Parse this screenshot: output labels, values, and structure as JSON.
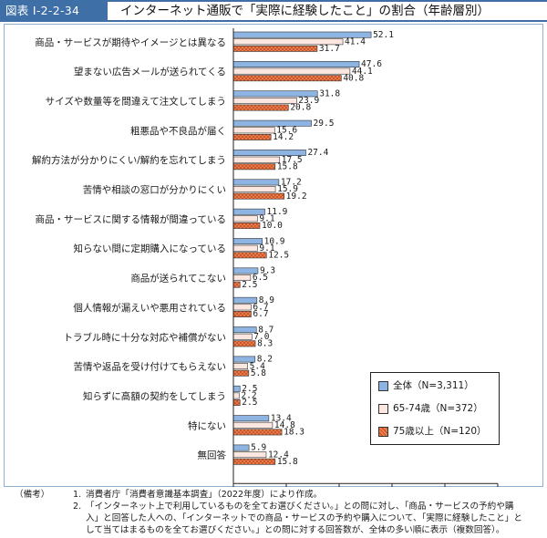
{
  "header": {
    "figure_id": "図表 I-2-2-34",
    "title": "インターネット通販で「実際に経験したこと」の割合（年齢層別）"
  },
  "colors": {
    "brand": "#3f6fa7",
    "series_all": "#8db4e2",
    "series_65_74": "#fbe7e0",
    "series_75_plus": "#f08050",
    "series_75_plus_hatch": "#b84a20"
  },
  "chart_data": {
    "type": "bar",
    "orientation": "horizontal",
    "categories": [
      "商品・サービスが期待やイメージとは異なる",
      "望まない広告メールが送られてくる",
      "サイズや数量等を間違えて注文してしまう",
      "粗悪品や不良品が届く",
      "解約方法が分かりにくい/解約を忘れてしまう",
      "苦情や相談の窓口が分かりにくい",
      "商品・サービスに関する情報が間違っている",
      "知らない間に定期購入になっている",
      "商品が送られてこない",
      "個人情報が漏えいや悪用されている",
      "トラブル時に十分な対応や補償がない",
      "苦情や返品を受け付けてもらえない",
      "知らずに高額の契約をしてしまう",
      "特にない",
      "無回答"
    ],
    "series": [
      {
        "name": "全体（N=3,311）",
        "values": [
          52.1,
          47.6,
          31.8,
          29.5,
          27.4,
          17.2,
          11.9,
          10.9,
          9.3,
          8.9,
          8.7,
          8.2,
          2.5,
          13.4,
          5.9
        ],
        "labels": [
          "52.1",
          "47.6",
          "31.8",
          "29.5",
          "27.4",
          "17.2",
          "11.9",
          "10.9",
          "9.3",
          "8.9",
          "8.7",
          "8.2",
          "2.5",
          "13.4",
          "5.9"
        ]
      },
      {
        "name": "65-74歳（N=372）",
        "values": [
          41.4,
          44.1,
          23.9,
          15.6,
          17.5,
          15.9,
          9.1,
          9.1,
          6.5,
          6.7,
          7.0,
          5.4,
          2.2,
          14.8,
          12.4
        ],
        "labels": [
          "41.4",
          "44.1",
          "23.9",
          "15.6",
          "17.5",
          "15.9",
          "9.1",
          "9.1",
          "6.5",
          "6.7",
          "7.0",
          "5.4",
          "2.2",
          "14.8",
          "12.4"
        ]
      },
      {
        "name": "75歳以上（N=120）",
        "values": [
          31.7,
          40.8,
          20.8,
          14.2,
          15.8,
          19.2,
          10.0,
          12.5,
          2.5,
          6.7,
          8.3,
          5.8,
          2.5,
          18.3,
          15.8
        ],
        "labels": [
          "31.7",
          "40.8",
          "20.8",
          "14.2",
          "15.8",
          "19.2",
          "10.0",
          "12.5",
          "2.5",
          "6.7",
          "8.3",
          "5.8",
          "2.5",
          "18.3",
          "15.8"
        ]
      }
    ],
    "xlim": [
      0,
      100
    ],
    "xticks": [
      "0",
      "20",
      "40",
      "60",
      "80",
      "100"
    ],
    "xunit": "（%）",
    "grid": false,
    "legend": "bottom-right"
  },
  "notes": {
    "head": "（備考）",
    "items": [
      {
        "num": "1.",
        "text": "消費者庁「消費者意識基本調査」（2022年度）により作成。"
      },
      {
        "num": "2.",
        "text": "「インターネット上で利用しているものを全てお選びください。」との問に対し、「商品・サービスの予約や購入」と回答した人への、「インターネットでの商品・サービスの予約や購入について、「実際に経験したこと」として当てはまるものを全てお選びください。」との問に対する回答数が、全体の多い順に表示（複数回答）。"
      }
    ]
  }
}
